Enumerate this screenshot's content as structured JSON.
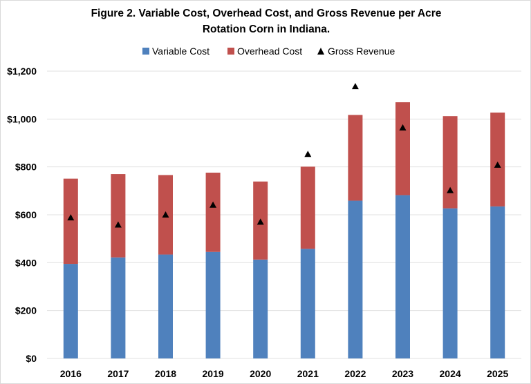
{
  "chart_data": {
    "type": "bar",
    "stacked": true,
    "title_lines": [
      "Figure 2. Variable Cost, Overhead Cost, and Gross Revenue per Acre",
      "Rotation Corn in Indiana."
    ],
    "categories": [
      "2016",
      "2017",
      "2018",
      "2019",
      "2020",
      "2021",
      "2022",
      "2023",
      "2024",
      "2025"
    ],
    "series": [
      {
        "name": "Variable Cost",
        "kind": "bar",
        "color": "#4f81bd",
        "values": [
          395,
          422,
          434,
          445,
          413,
          458,
          659,
          682,
          627,
          635
        ]
      },
      {
        "name": "Overhead Cost",
        "kind": "bar",
        "color": "#c0504d",
        "values": [
          356,
          348,
          332,
          331,
          326,
          343,
          358,
          388,
          385,
          392
        ]
      },
      {
        "name": "Gross Revenue",
        "kind": "marker",
        "marker": "triangle",
        "color": "#000000",
        "values": [
          588,
          558,
          600,
          641,
          570,
          853,
          1136,
          964,
          702,
          808
        ]
      }
    ],
    "ylim": [
      0,
      1200
    ],
    "yticks": [
      "$0",
      "$200",
      "$400",
      "$600",
      "$800",
      "$1,000",
      "$1,200"
    ],
    "ytick_values": [
      0,
      200,
      400,
      600,
      800,
      1000,
      1200
    ],
    "grid": true,
    "legend_position": "top"
  }
}
